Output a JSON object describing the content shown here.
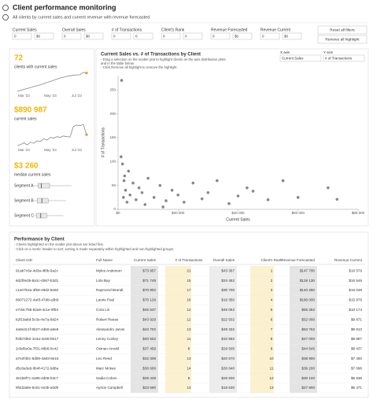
{
  "header": {
    "title": "Client performance monitoring",
    "subtitle": "All clients by current sales and current revenue with revenue forecasted"
  },
  "filters": [
    {
      "label": "Current Sales",
      "min": "0",
      "max": "$0"
    },
    {
      "label": "Overall Sales",
      "min": "0",
      "max": "$0"
    },
    {
      "label": "# of Transactions",
      "min": "0",
      "max": "0"
    },
    {
      "label": "Client's Rank",
      "min": "0",
      "max": "0"
    },
    {
      "label": "Revenue Forecasted",
      "min": "0",
      "max": "$0"
    },
    {
      "label": "Revenue Current",
      "min": "0",
      "max": "$0"
    }
  ],
  "buttons": [
    "Reset all filters",
    "Remove all highlight"
  ],
  "kpis": [
    {
      "value": "72",
      "label": "clients with current sales"
    },
    {
      "value": "$890 987",
      "label": "current sales"
    },
    {
      "value": "$3 260",
      "label": "median current sales"
    }
  ],
  "chart_data": [
    {
      "type": "line",
      "categories": [
        null,
        null,
        "Mar '23",
        null,
        null,
        null,
        null,
        null,
        null,
        null,
        "May '23",
        null,
        null,
        null,
        null,
        null,
        null,
        null,
        "Jul '23",
        null,
        null,
        null
      ],
      "values": [
        5,
        8,
        12,
        15,
        18,
        22,
        25,
        28,
        32,
        36,
        40,
        44,
        48,
        52,
        55,
        58,
        60,
        62,
        63,
        64,
        72,
        70
      ],
      "color": "#888888",
      "highlight_color": "#f28e2b"
    },
    {
      "type": "line",
      "categories": [
        null,
        null,
        "Mar '23",
        null,
        null,
        null,
        null,
        null,
        null,
        null,
        "May '23",
        null,
        null,
        null,
        null,
        null,
        null,
        null,
        "Jul '23",
        null,
        null,
        null
      ],
      "values": [
        20000,
        35000,
        60000,
        30000,
        70000,
        55000,
        90000,
        80000,
        120000,
        100000,
        140000,
        130000,
        150000,
        140000,
        160000,
        150000,
        145000,
        300000,
        320000,
        310000,
        330000,
        180000
      ],
      "color": "#888888",
      "highlight_color": "#f28e2b"
    },
    {
      "type": "box",
      "categories": [
        "Segment A",
        "Segment B",
        "Segment C"
      ],
      "series": [
        {
          "min": 200,
          "q1": 1800,
          "median": 3000,
          "q3": 6000,
          "max": 14000
        },
        {
          "min": 300,
          "q1": 1500,
          "median": 3200,
          "q3": 5500,
          "max": 12000
        },
        {
          "min": 100,
          "q1": 1200,
          "median": 2800,
          "q3": 5000,
          "max": 11000
        }
      ],
      "xlim": [
        0,
        20000
      ],
      "color": "#999999"
    },
    {
      "type": "scatter",
      "title": "Current Sales vs. # of Transactions by Client",
      "notes": [
        "- Drag a selection on the scatter plot to highlight clients on the axis distribution plots",
        "and in the table below.",
        "- Click Remove all highlight to remove the highlight."
      ],
      "controls": {
        "x_label": "X axis",
        "x_value": "Current Sales",
        "y_label": "Y axis",
        "y_value": "# of Transactions"
      },
      "xlabel": "Current Sales",
      "ylabel": "# of Transactions",
      "x": [
        1200,
        1500,
        2000,
        2500,
        1800,
        3000,
        4000,
        5000,
        6000,
        7000,
        8000,
        9000,
        10000,
        12000,
        14000,
        16000,
        18000,
        20000,
        22000,
        25000,
        28000,
        30000,
        33000,
        37000,
        40000,
        43000,
        45000,
        50000,
        55000,
        60000,
        70000,
        73000,
        3500,
        2200,
        1000,
        15000
      ],
      "y": [
        270,
        95,
        60,
        40,
        25,
        15,
        30,
        55,
        20,
        45,
        35,
        10,
        65,
        25,
        50,
        18,
        40,
        30,
        15,
        55,
        22,
        35,
        60,
        12,
        28,
        45,
        38,
        20,
        60,
        25,
        45,
        21,
        80,
        70,
        110,
        5
      ],
      "xlim": [
        0,
        80000
      ],
      "ylim": [
        0,
        280
      ],
      "xticks": [
        {
          "value": 0,
          "label": "$0"
        },
        {
          "value": 20000,
          "label": "$20 000"
        },
        {
          "value": 40000,
          "label": "$40 000"
        },
        {
          "value": 60000,
          "label": "$60 000"
        },
        {
          "value": 80000,
          "label": "$80 000"
        }
      ],
      "yticks": [
        0,
        50,
        100,
        150,
        200,
        250
      ],
      "color": "#555555"
    }
  ],
  "table": {
    "title": "Performance by Client",
    "notes": [
      "- Clients highlighted on the scatter plot above are listed first.",
      "- Click on a metric header to sort; sorting is made separately within highlighted and non-highlighted groups."
    ],
    "columns": [
      "Client UID",
      "Full Name",
      "Current Sales",
      "# of Transactions",
      "Overall Sales",
      "Client's Rank",
      "Revenue Forecasted",
      "Revenue Current"
    ],
    "rows": [
      [
        "91ab7c6e-4d3a-4f0b-9a2c",
        "Myles Anderson",
        "$73 957",
        "21",
        "$43 367",
        "1",
        "$147 700",
        "$16 576"
      ],
      [
        "6d2f0e35-8a1c-4b67-b3d1",
        "Lola Bay",
        "$71 749",
        "15",
        "$24 452",
        "2",
        "$128 130",
        "$16 546"
      ],
      [
        "c1e07b4a-3f58-49d2-8e60",
        "Raymond Brandt",
        "$70 802",
        "17",
        "$30 700",
        "3",
        "$140 250",
        "$16 038"
      ],
      [
        "86071272-4a6f-47d8-a3b9",
        "Laurie Paul",
        "$70 129",
        "16",
        "$16 350",
        "4",
        "$180 000",
        "$15 876"
      ],
      [
        "e7d4c765-82a9-4c1e-9f03",
        "Cora Lin",
        "$45 537",
        "12",
        "$46 062",
        "5",
        "$55 282",
        "$10 174"
      ],
      [
        "b2f19a8d-5c3e-4e7a-8d24",
        "Robert Reese",
        "$43 929",
        "12",
        "$22 502",
        "6",
        "$52 000",
        "$9 871"
      ],
      [
        "4a8e3c1f-9b27-4d50-a6e8",
        "Alessandro Jarvis",
        "$43 702",
        "13",
        "$49 332",
        "7",
        "$53 762",
        "$9 813"
      ],
      [
        "f03b7d92-1e4a-4c86-b517",
        "Lenny Conley",
        "$40 502",
        "11",
        "$10 582",
        "8",
        "$47 000",
        "$8 887"
      ],
      [
        "2c9d5e0a-7f31-48b6-9c42",
        "Osman Arnold",
        "$37 459",
        "8",
        "$29 505",
        "9",
        "$44 545",
        "$8 437"
      ],
      [
        "a7e2f4b1-6d08-4a93-8e15",
        "Leo Reed",
        "$32 308",
        "13",
        "$20 570",
        "10",
        "$38 900",
        "$7 400"
      ],
      [
        "d5c8a3e6-0b4f-4172-9d8a",
        "Marc Mckee",
        "$30 669",
        "14",
        "$30 640",
        "11",
        "$36 200",
        "$7 098"
      ],
      [
        "3e1b6f7c-2a95-4d08-b3c7",
        "Sadia Cohen",
        "$25 449",
        "8",
        "$25 500",
        "12",
        "$30 100",
        "$5 838"
      ],
      [
        "9f4d2a8e-5c61-4e3b-a0d9",
        "Ayrton Campbell",
        "$23 590",
        "13",
        "$18 630",
        "13",
        "$27 800",
        "$5 471"
      ]
    ]
  }
}
